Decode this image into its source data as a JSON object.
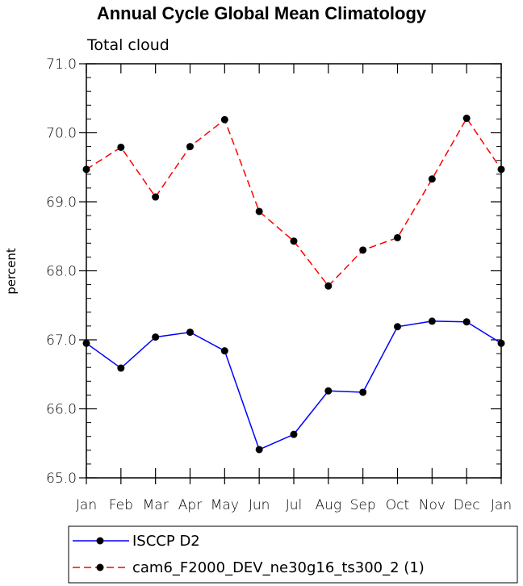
{
  "chart_data": {
    "type": "line",
    "title": "Annual Cycle Global Mean Climatology",
    "subtitle": "Total cloud",
    "xlabel": "",
    "ylabel": "percent",
    "categories": [
      "Jan",
      "Feb",
      "Mar",
      "Apr",
      "May",
      "Jun",
      "Jul",
      "Aug",
      "Sep",
      "Oct",
      "Nov",
      "Dec",
      "Jan"
    ],
    "ylim": [
      65.0,
      71.0
    ],
    "yticks": [
      "65.0",
      "66.0",
      "67.0",
      "68.0",
      "69.0",
      "70.0",
      "71.0"
    ],
    "grid": false,
    "legend_position": "bottom",
    "series": [
      {
        "name": "ISCCP D2",
        "color": "#0000ff",
        "dash": "solid",
        "values": [
          66.95,
          66.59,
          67.04,
          67.11,
          66.84,
          65.41,
          65.63,
          66.26,
          66.24,
          67.19,
          67.27,
          67.26,
          66.95
        ]
      },
      {
        "name": "cam6_F2000_DEV_ne30g16_ts300_2 (1)",
        "color": "#ff0000",
        "dash": "dashed",
        "values": [
          69.47,
          69.79,
          69.07,
          69.8,
          70.19,
          68.86,
          68.43,
          67.78,
          68.3,
          68.48,
          69.33,
          70.21,
          69.47
        ]
      }
    ]
  }
}
